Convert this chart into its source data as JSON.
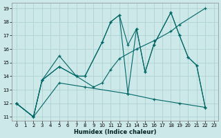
{
  "xlabel": "Humidex (Indice chaleur)",
  "bg_color": "#cce8e8",
  "grid_color": "#aacece",
  "line_color": "#006666",
  "xlim_min": -0.5,
  "xlim_max": 23.5,
  "ylim_min": 10.7,
  "ylim_max": 19.4,
  "xticks": [
    0,
    1,
    2,
    3,
    4,
    5,
    6,
    7,
    8,
    9,
    10,
    11,
    12,
    13,
    14,
    15,
    16,
    17,
    18,
    19,
    20,
    21,
    22,
    23
  ],
  "yticks": [
    11,
    12,
    13,
    14,
    15,
    16,
    17,
    18,
    19
  ],
  "line_ascending": {
    "x": [
      0,
      2,
      3,
      5,
      7,
      9,
      10,
      11,
      12,
      14,
      16,
      18,
      19,
      22
    ],
    "y": [
      12,
      11,
      13.7,
      14.7,
      14.0,
      13.2,
      13.5,
      14.5,
      15.3,
      16.0,
      16.6,
      17.3,
      17.8,
      19.0
    ]
  },
  "line_descending": {
    "x": [
      0,
      2,
      5,
      8,
      13,
      16,
      19,
      22
    ],
    "y": [
      12,
      11,
      13.5,
      13.2,
      12.7,
      12.3,
      12.0,
      11.7
    ]
  },
  "line_zigzag1": {
    "x": [
      0,
      2,
      3,
      5,
      7,
      8,
      10,
      11,
      12,
      13,
      14,
      15,
      16,
      18,
      19,
      20,
      21,
      22
    ],
    "y": [
      12,
      11,
      13.7,
      14.7,
      14.0,
      14.0,
      16.5,
      18.0,
      18.5,
      16.3,
      17.5,
      14.3,
      16.3,
      18.7,
      17.0,
      15.4,
      14.8,
      11.7
    ]
  },
  "line_zigzag2": {
    "x": [
      0,
      2,
      3,
      5,
      7,
      8,
      10,
      11,
      12,
      13,
      14,
      15,
      16,
      18,
      19,
      20,
      21,
      22
    ],
    "y": [
      12,
      11,
      13.7,
      15.5,
      14.0,
      14.0,
      16.5,
      18.0,
      18.5,
      12.7,
      17.5,
      14.3,
      16.3,
      18.7,
      17.0,
      15.4,
      14.8,
      11.7
    ]
  }
}
